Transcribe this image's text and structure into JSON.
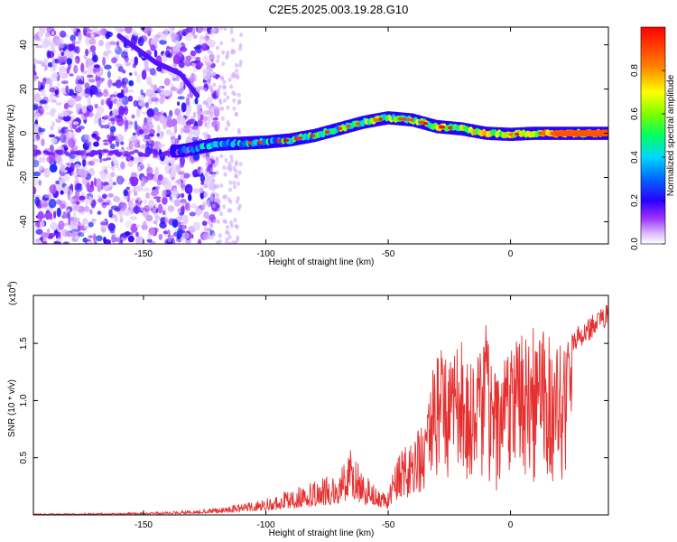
{
  "title": "C2E5.2025.003.19.28.G10",
  "chart_data": [
    {
      "type": "heatmap",
      "xlabel": "Height of straight line (km)",
      "ylabel": "Frequency (Hz)",
      "xlim": [
        -195,
        40
      ],
      "ylim": [
        -50,
        48
      ],
      "xticks": [
        -150,
        -100,
        -50,
        0
      ],
      "yticks": [
        -40,
        -20,
        0,
        20,
        40
      ],
      "colorbar": {
        "label": "Normalized spectral amplitude",
        "range": [
          0,
          1
        ],
        "ticks": [
          0.0,
          0.2,
          0.4,
          0.6,
          0.8
        ],
        "ticklabels": [
          "0.0",
          "0.2",
          "0.4",
          "0.6",
          "0.8"
        ]
      },
      "ridge": {
        "x": [
          -135,
          -120,
          -100,
          -90,
          -80,
          -70,
          -60,
          -50,
          -40,
          -30,
          -20,
          -10,
          0,
          10,
          20,
          40
        ],
        "y": [
          -8,
          -5,
          -4,
          -3,
          -1,
          2,
          5,
          7,
          6,
          3,
          2,
          0,
          -0.5,
          0,
          0,
          0
        ]
      },
      "branch": {
        "x": [
          -160,
          -145,
          -135,
          -128
        ],
        "y": [
          44,
          32,
          27,
          17
        ]
      }
    },
    {
      "type": "line",
      "xlabel": "Height of straight line (km)",
      "ylabel": "SNR (10 * v/v)",
      "yscale_label": "(x10^4)",
      "xlim": [
        -195,
        40
      ],
      "ylim": [
        0,
        1.92
      ],
      "xticks": [
        -150,
        -100,
        -50,
        0
      ],
      "yticks": [
        0.5,
        1.0,
        1.5
      ],
      "yticklabels": [
        "0.5",
        "1.0",
        "1.5"
      ],
      "series": [
        {
          "color": "#e53030",
          "envelope_x": [
            -195,
            -150,
            -130,
            -110,
            -100,
            -90,
            -80,
            -70,
            -65,
            -60,
            -50,
            -45,
            -40,
            -35,
            -30,
            -25,
            -20,
            -15,
            -10,
            -5,
            0,
            10,
            20,
            30,
            40
          ],
          "envelope_y": [
            0.01,
            0.02,
            0.04,
            0.09,
            0.15,
            0.22,
            0.3,
            0.38,
            0.6,
            0.35,
            0.22,
            0.6,
            0.62,
            0.9,
            1.5,
            1.4,
            1.6,
            1.3,
            1.7,
            1.2,
            1.5,
            1.75,
            1.5,
            1.7,
            1.85
          ]
        }
      ]
    }
  ]
}
